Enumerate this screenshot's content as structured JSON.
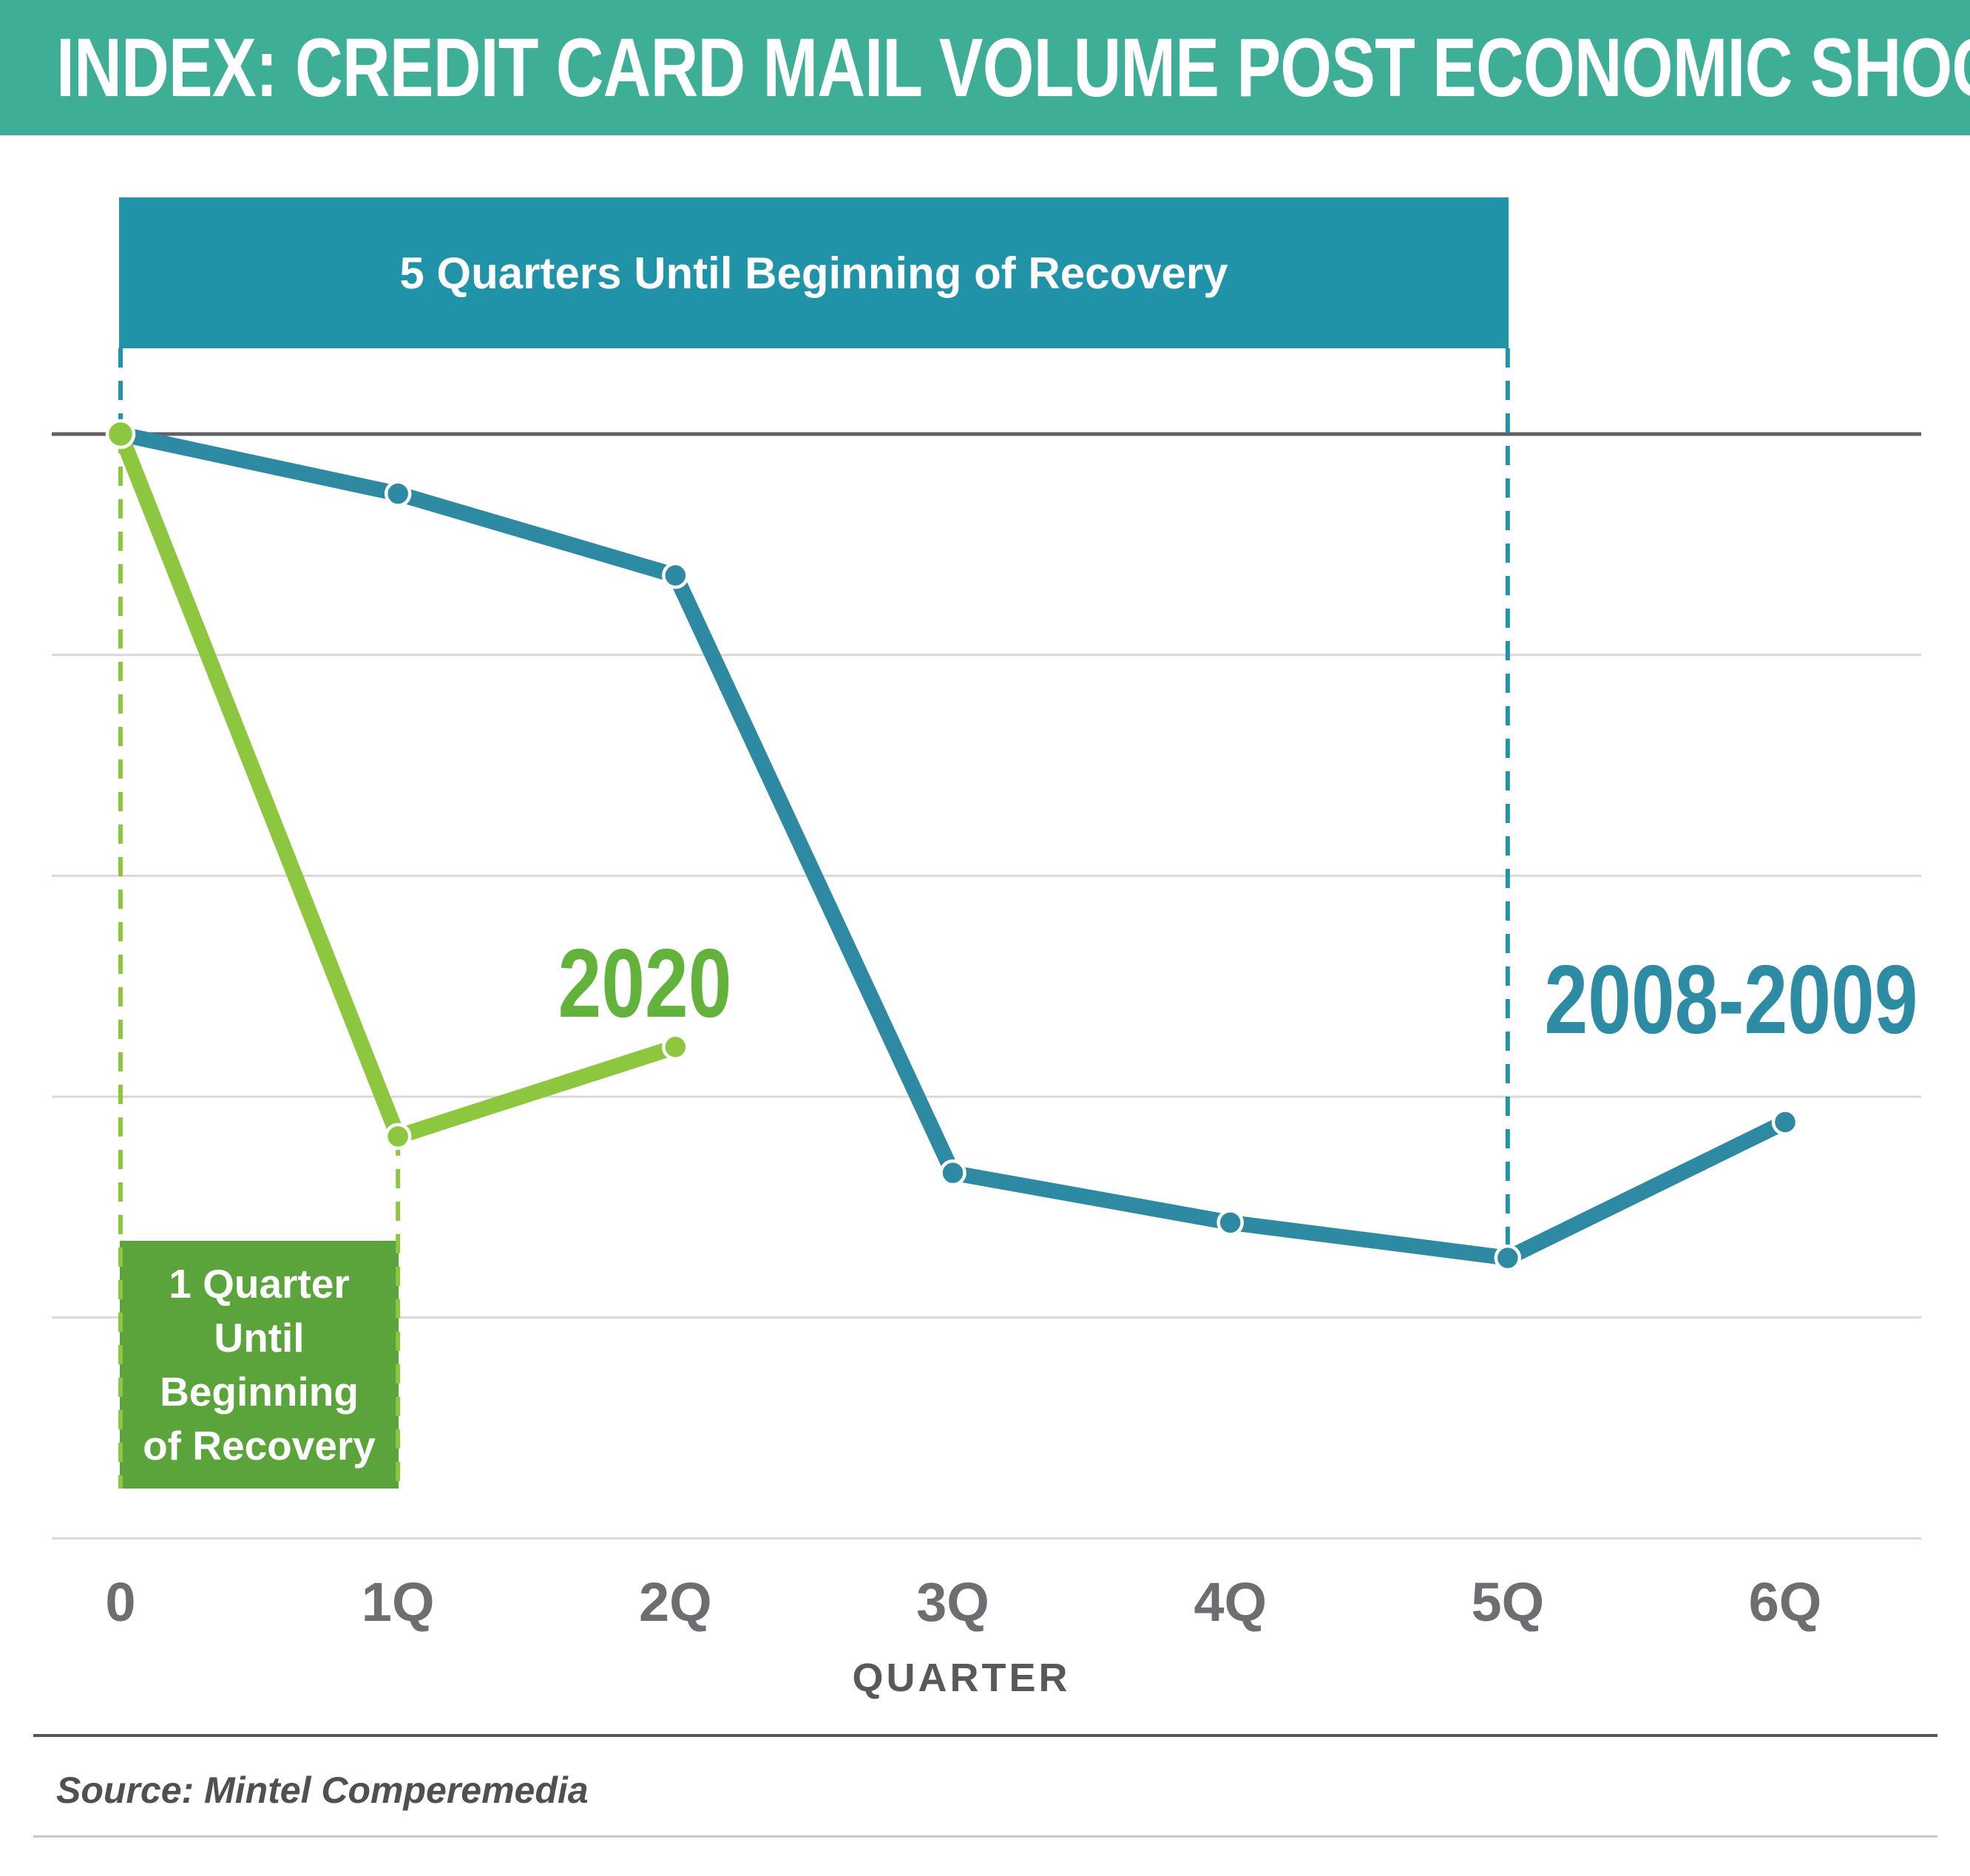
{
  "header": {
    "title": "INDEX: CREDIT CARD MAIL VOLUME POST ECONOMIC SHOCK"
  },
  "annotations": {
    "banner_5q": "5 Quarters Until Beginning of Recovery",
    "box_1q": "1 Quarter\nUntil\nBeginning\nof Recovery"
  },
  "series_labels": {
    "green": "2020",
    "blue": "2008-2009"
  },
  "axis": {
    "xlabel": "QUARTER"
  },
  "source": "Source: Mintel Comperemedia",
  "colors": {
    "brand_green": "#3fae97",
    "banner_teal": "#2093a9",
    "line_blue": "#2e8aa2",
    "line_green": "#8dc63f",
    "box_green": "#5ba43b",
    "label_green": "#62b23c",
    "label_blue": "#2d8ca4",
    "grid_light": "#d9d9d9",
    "grid_dark": "#606164"
  },
  "chart_data": {
    "type": "line",
    "title": "INDEX: CREDIT CARD MAIL VOLUME POST ECONOMIC SHOCK",
    "x_categories": [
      "0",
      "1Q",
      "2Q",
      "3Q",
      "4Q",
      "5Q",
      "6Q"
    ],
    "xlabel": "QUARTER",
    "ylabel": "",
    "y_axis_note": "no y tick labels shown; values are index estimates where pre-shock start = 100 and bottom gridline = 0",
    "ylim": [
      0,
      100
    ],
    "grid": "horizontal gridlines at estimated index 100 (dark) and 80, 60, 40, 20, 0 (light)",
    "series": [
      {
        "name": "2008-2009",
        "color": "#2e8aa2",
        "values": [
          100,
          94.6,
          87.2,
          33.1,
          28.6,
          25.4,
          37.7
        ]
      },
      {
        "name": "2020",
        "color": "#8dc63f",
        "values": [
          100,
          36.4,
          44.5
        ]
      }
    ],
    "annotations": [
      {
        "text": "5 Quarters Until Beginning of Recovery",
        "span_categories": [
          "0",
          "5Q"
        ],
        "color": "#2093a9"
      },
      {
        "text": "1 Quarter Until Beginning of Recovery",
        "span_categories": [
          "0",
          "1Q"
        ],
        "color": "#5ba43b"
      }
    ],
    "source": "Source: Mintel Comperemedia"
  }
}
